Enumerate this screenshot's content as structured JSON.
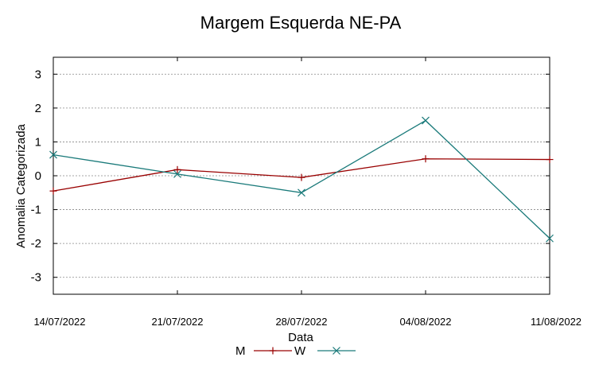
{
  "chart_data": {
    "type": "line",
    "title": "Margem Esquerda NE-PA",
    "xlabel": "Data",
    "ylabel": "Anomalia Categorizada",
    "x": [
      "14/07/2022",
      "21/07/2022",
      "28/07/2022",
      "04/08/2022",
      "11/08/2022"
    ],
    "ylim": [
      -3.5,
      3.5
    ],
    "yticks": [
      "3",
      "2",
      "1",
      "0",
      "-1",
      "-2",
      "-3"
    ],
    "grid": true,
    "legend": "bottom-center",
    "series": [
      {
        "name": "M",
        "color": "#990000",
        "marker": "plus",
        "values": [
          -0.45,
          0.18,
          -0.05,
          0.5,
          0.48
        ]
      },
      {
        "name": "W",
        "color": "#1a7a7a",
        "marker": "cross",
        "values": [
          0.62,
          0.05,
          -0.5,
          1.63,
          -1.85
        ]
      }
    ]
  }
}
